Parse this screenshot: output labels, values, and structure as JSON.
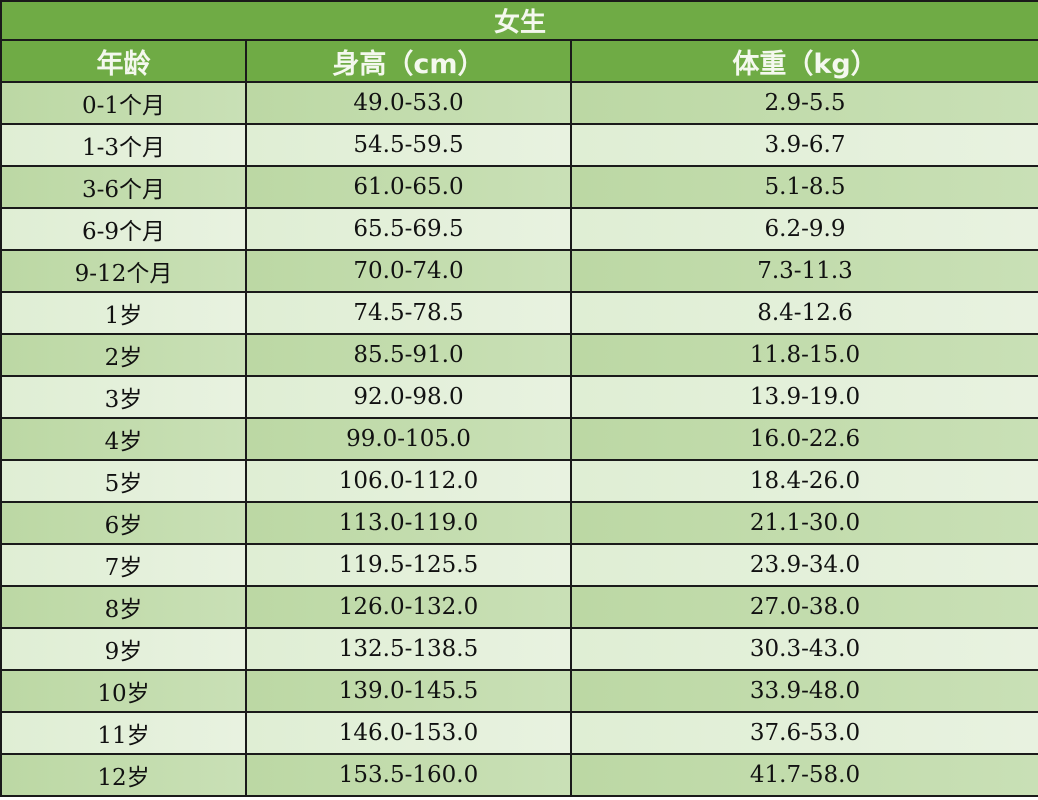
{
  "title": "女生",
  "headers": [
    "年龄",
    "身高（cm）",
    "体重（kg）"
  ],
  "rows": [
    [
      "0-1个月",
      "49.0-53.0",
      "2.9-5.5"
    ],
    [
      "1-3个月",
      "54.5-59.5",
      "3.9-6.7"
    ],
    [
      "3-6个月",
      "61.0-65.0",
      "5.1-8.5"
    ],
    [
      "6-9个月",
      "65.5-69.5",
      "6.2-9.9"
    ],
    [
      "9-12个月",
      "70.0-74.0",
      "7.3-11.3"
    ],
    [
      "1岁",
      "74.5-78.5",
      "8.4-12.6"
    ],
    [
      "2岁",
      "85.5-91.0",
      "11.8-15.0"
    ],
    [
      "3岁",
      "92.0-98.0",
      "13.9-19.0"
    ],
    [
      "4岁",
      "99.0-105.0",
      "16.0-22.6"
    ],
    [
      "5岁",
      "106.0-112.0",
      "18.4-26.0"
    ],
    [
      "6岁",
      "113.0-119.0",
      "21.1-30.0"
    ],
    [
      "7岁",
      "119.5-125.5",
      "23.9-34.0"
    ],
    [
      "8岁",
      "126.0-132.0",
      "27.0-38.0"
    ],
    [
      "9岁",
      "132.5-138.5",
      "30.3-43.0"
    ],
    [
      "10岁",
      "139.0-145.5",
      "33.9-48.0"
    ],
    [
      "11岁",
      "146.0-153.0",
      "37.6-53.0"
    ],
    [
      "12岁",
      "153.5-160.0",
      "41.7-58.0"
    ]
  ],
  "colors": {
    "header": "#6fab45",
    "row_dark": "#c5dcb0",
    "row_light": "#e3eedb"
  }
}
